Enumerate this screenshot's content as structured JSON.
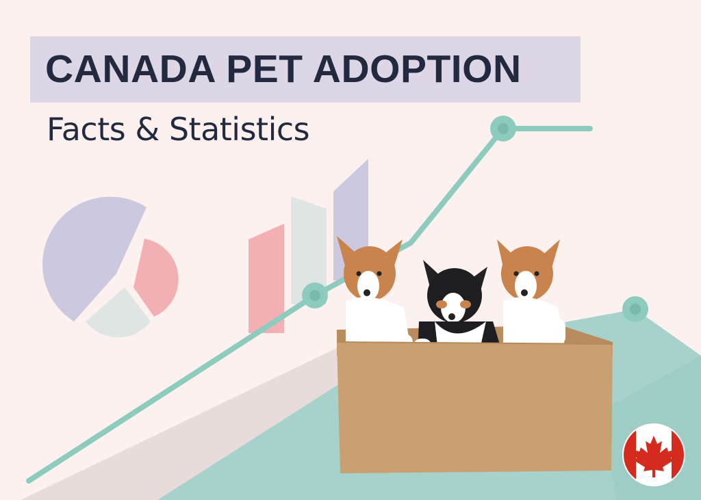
{
  "header": {
    "title": "CANADA PET ADOPTION",
    "subtitle": "Facts & Statistics"
  },
  "colors": {
    "background": "#fcf1ef",
    "title_box": "#dcd6e7",
    "title_text": "#232a40",
    "teal": "#8ecbbf",
    "teal_area": "#a6d2cb",
    "pink": "#f3b0b4",
    "lavender": "#cbc8df",
    "pale_grey": "#dfe5e2",
    "box": "#c9a072",
    "flag_red": "#d52b1e"
  },
  "illustration": {
    "elements": [
      "pie-chart-icon",
      "bar-chart-icon",
      "trend-line",
      "three-puppies-in-cardboard-box",
      "canada-flag-icon"
    ]
  }
}
